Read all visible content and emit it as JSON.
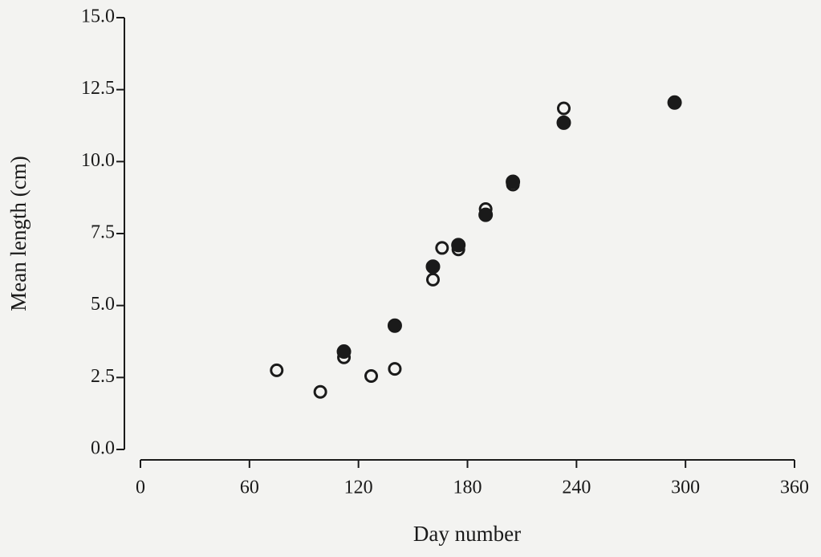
{
  "chart_data": {
    "type": "scatter",
    "xlabel": "Day number",
    "ylabel": "Mean length (cm)",
    "xlim": [
      0,
      360
    ],
    "xticks": [
      0,
      60,
      120,
      180,
      240,
      300,
      360
    ],
    "ylim": [
      0,
      15
    ],
    "yticks": [
      {
        "value": 0,
        "label": "0.0"
      },
      {
        "value": 2.5,
        "label": "2.5"
      },
      {
        "value": 5,
        "label": "5.0"
      },
      {
        "value": 7.5,
        "label": "7.5"
      },
      {
        "value": 10,
        "label": "10.0"
      },
      {
        "value": 12.5,
        "label": "12.5"
      },
      {
        "value": 15,
        "label": "15.0"
      }
    ],
    "grid": false,
    "series": [
      {
        "color": "#1a1a1a",
        "marker": "open",
        "x": [
          75,
          99,
          112,
          127,
          140,
          161,
          166,
          175,
          190,
          205,
          233
        ],
        "values": [
          2.75,
          2.0,
          3.2,
          2.55,
          2.8,
          5.9,
          7.0,
          6.95,
          8.35,
          9.2,
          11.85
        ]
      },
      {
        "color": "#1a1a1a",
        "marker": "filled",
        "x": [
          112,
          140,
          161,
          175,
          190,
          205,
          233,
          294
        ],
        "values": [
          3.4,
          4.3,
          6.35,
          7.1,
          8.15,
          9.3,
          11.35,
          12.05
        ]
      }
    ]
  }
}
